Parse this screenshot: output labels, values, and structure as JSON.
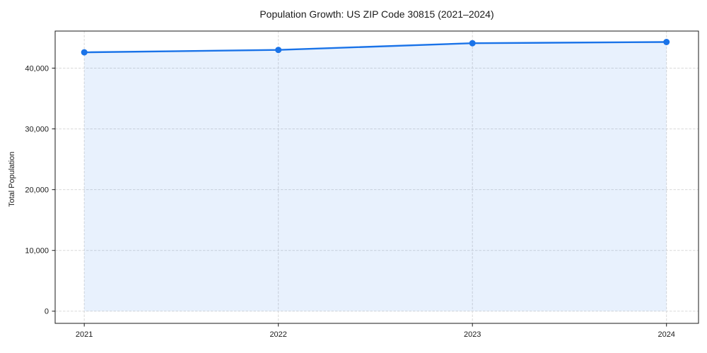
{
  "chart_data": {
    "type": "line",
    "title": "Population Growth: US ZIP Code 30815 (2021–2024)",
    "xlabel": "",
    "ylabel": "Total Population",
    "x": [
      2021,
      2022,
      2023,
      2024
    ],
    "x_tick_labels": [
      "2021",
      "2022",
      "2023",
      "2024"
    ],
    "series": [
      {
        "name": "Total Population",
        "values": [
          42600,
          43000,
          44100,
          44300
        ]
      }
    ],
    "yticks": [
      0,
      10000,
      20000,
      30000,
      40000
    ],
    "ylim": [
      -2000,
      46100
    ],
    "xlim": [
      2020.85,
      2024.165
    ],
    "grid": true,
    "legend": false,
    "marker": "circle",
    "area_fill": true,
    "styles": {
      "line_color": "#1a73e8",
      "marker_color": "#1a73e8",
      "fill_color": "#1a73e8",
      "fill_opacity": 0.1,
      "grid_color": "#d9d9d9",
      "spine_color": "#1a1a1a",
      "text_color": "#1a1a1a",
      "background": "#ffffff"
    }
  }
}
